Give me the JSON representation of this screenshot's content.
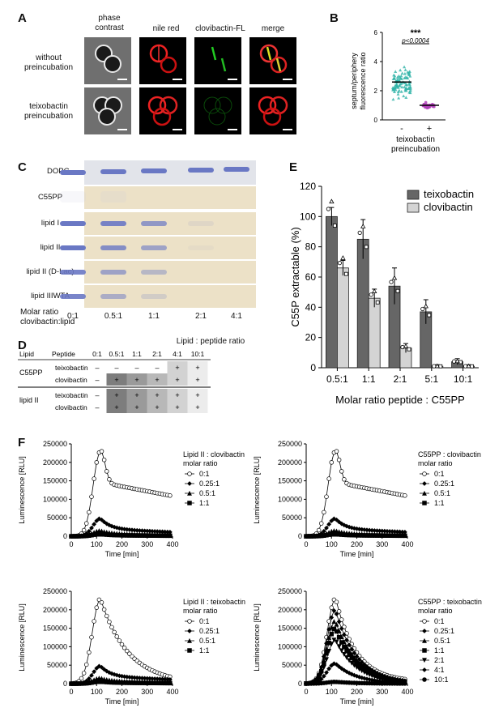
{
  "panelA": {
    "label": "A",
    "col_headers": [
      "phase\ncontrast",
      "nile red",
      "clovibactin-FL",
      "merge"
    ],
    "rows": [
      {
        "label": "without\npreincubation"
      },
      {
        "label": "teixobactin\npreincubation"
      }
    ]
  },
  "panelB": {
    "label": "B",
    "ylabel": "septum/periphery\nfluorescence ratio",
    "yticks": [
      "0",
      "2",
      "4",
      "6"
    ],
    "ylim": [
      0,
      6
    ],
    "xticks": [
      "-",
      "+"
    ],
    "xlabel": "teixobactin\npreincubation",
    "significance": "***",
    "pvalue": "p<0.0004",
    "chart_data": {
      "type": "scatter",
      "series": [
        {
          "category": "-",
          "mean": 2.6,
          "spread": 0.9,
          "color": "#2fb3a8"
        },
        {
          "category": "+",
          "mean": 1.0,
          "spread": 0.15,
          "color": "#b040b8"
        }
      ]
    }
  },
  "panelC": {
    "label": "C",
    "rows": [
      "DOPG",
      "C55PP",
      "lipid I",
      "lipid II",
      "lipid II (D-Lac)",
      "lipid IIIWTA"
    ],
    "ratios": [
      "0:1",
      "0.5:1",
      "1:1",
      "2:1",
      "4:1"
    ],
    "xlabel": "Molar ratio\nclovibactin:lipid",
    "band_intensity": [
      [
        1,
        1,
        1,
        1,
        1
      ],
      [
        0.15,
        0.15,
        0,
        0,
        0
      ],
      [
        1,
        0.9,
        0.7,
        0.1,
        0
      ],
      [
        1,
        0.8,
        0.6,
        0.05,
        0
      ],
      [
        0.9,
        0.6,
        0.4,
        0,
        0
      ],
      [
        0.9,
        0.5,
        0.2,
        0,
        0
      ]
    ]
  },
  "panelD": {
    "label": "D",
    "title": "Lipid : peptide ratio",
    "col_headers": [
      "Lipid",
      "Peptide",
      "0:1",
      "0.5:1",
      "1:1",
      "2:1",
      "4:1",
      "10:1"
    ],
    "groups": [
      {
        "lipid": "C55PP",
        "rows": [
          {
            "peptide": "teixobactin",
            "cells": [
              "–",
              "–",
              "–",
              "–",
              "+",
              "+"
            ]
          },
          {
            "peptide": "clovibactin",
            "cells": [
              "–",
              "+",
              "+",
              "+",
              "+",
              "+"
            ]
          }
        ]
      },
      {
        "lipid": "lipid II",
        "rows": [
          {
            "peptide": "teixobactin",
            "cells": [
              "–",
              "+",
              "+",
              "+",
              "+",
              "+"
            ]
          },
          {
            "peptide": "clovibactin",
            "cells": [
              "–",
              "+",
              "+",
              "+",
              "+",
              "+"
            ]
          }
        ]
      }
    ]
  },
  "panelE": {
    "label": "E",
    "chart_data": {
      "type": "bar",
      "categories": [
        "0.5:1",
        "1:1",
        "2:1",
        "5:1",
        "10:1"
      ],
      "series": [
        {
          "name": "teixobactin",
          "values": [
            100,
            85,
            54,
            37,
            4
          ],
          "errors": [
            6,
            13,
            12,
            8,
            2
          ],
          "color": "#666666"
        },
        {
          "name": "clovibactin",
          "values": [
            66,
            46,
            13,
            1,
            1
          ],
          "errors": [
            5,
            6,
            3,
            1,
            1
          ],
          "color": "#d4d4d4"
        }
      ],
      "ylim": [
        0,
        120
      ],
      "yticks": [
        0,
        20,
        40,
        60,
        80,
        100,
        120
      ],
      "ylabel": "C55P extractable (%)",
      "xlabel": "Molar ratio peptide : C55PP",
      "legend": "top-right"
    }
  },
  "panelF": {
    "label": "F",
    "charts": [
      {
        "legend_title": "Lipid II : clovibactin\nmolar ratio",
        "series": [
          "0:1",
          "0.25:1",
          "0.5:1",
          "1:1"
        ],
        "profile": "clovi"
      },
      {
        "legend_title": "C55PP : clovibactin\nmolar ratio",
        "series": [
          "0:1",
          "0.25:1",
          "0.5:1",
          "1:1"
        ],
        "profile": "clovi"
      },
      {
        "legend_title": "Lipid II : teixobactin\nmolar ratio",
        "series": [
          "0:1",
          "0.25:1",
          "0.5:1",
          "1:1"
        ],
        "profile": "teixoL"
      },
      {
        "legend_title": "C55PP : teixobactin\nmolar ratio",
        "series": [
          "0:1",
          "0.25:1",
          "0.5:1",
          "1:1",
          "2:1",
          "4:1",
          "10:1"
        ],
        "profile": "teixoC"
      }
    ],
    "ylabel": "Luminescence [RLU]",
    "xlabel": "Time [min]",
    "yticks": [
      "0",
      "50000",
      "100000",
      "150000",
      "200000",
      "250000"
    ],
    "xticks": [
      "0",
      "100",
      "200",
      "300",
      "400"
    ],
    "xlim": [
      0,
      400
    ],
    "ylim": [
      0,
      250000
    ]
  }
}
